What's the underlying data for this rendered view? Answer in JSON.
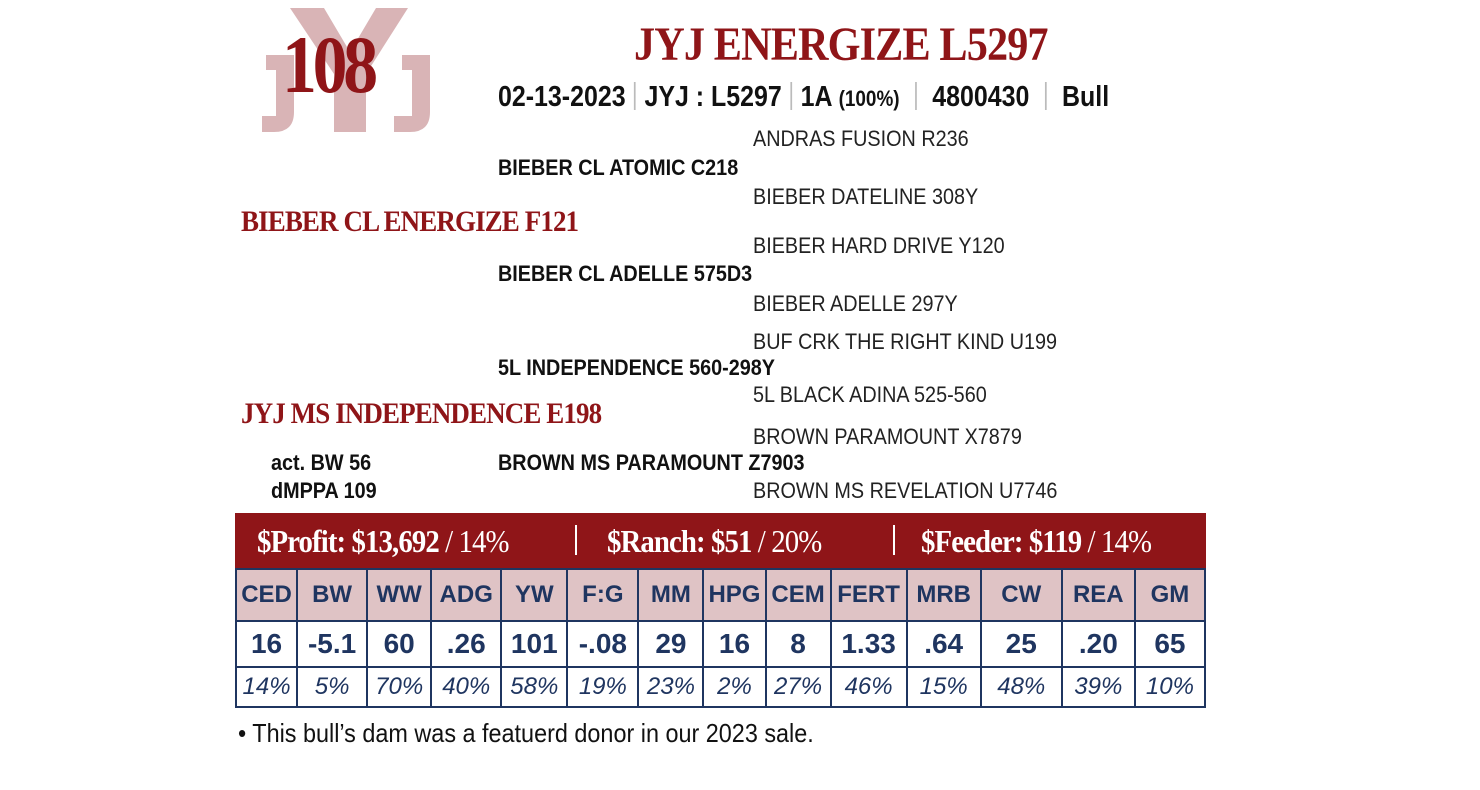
{
  "logo": {
    "letters": [
      "J",
      "Y",
      "J"
    ]
  },
  "lot_number": "108",
  "title": "JYJ ENERGIZE L5297",
  "info": {
    "birth_date": "02-13-2023",
    "tattoo": "JYJ : L5297",
    "code": "1A",
    "percent": "(100%)",
    "registration": "4800430",
    "sex": "Bull"
  },
  "pedigree": {
    "sire": "BIEBER CL ENERGIZE F121",
    "sire_sire": "BIEBER CL ATOMIC C218",
    "sire_sire_sire": "ANDRAS FUSION R236",
    "sire_sire_dam": "BIEBER DATELINE 308Y",
    "sire_dam": "BIEBER CL ADELLE 575D3",
    "sire_dam_sire": "BIEBER HARD DRIVE Y120",
    "sire_dam_dam": "BIEBER ADELLE 297Y",
    "dam": "JYJ MS INDEPENDENCE E198",
    "dam_sire": "5L INDEPENDENCE 560-298Y",
    "dam_sire_sire": "BUF CRK THE RIGHT KIND U199",
    "dam_sire_dam": "5L BLACK ADINA 525-560",
    "dam_dam": "BROWN MS PARAMOUNT Z7903",
    "dam_dam_sire": "BROWN PARAMOUNT X7879",
    "dam_dam_dam": "BROWN MS REVELATION U7746"
  },
  "measures": {
    "bw": "act. BW 56",
    "dmppa": "dMPPA 109"
  },
  "indexes": [
    {
      "label": "$Profit:",
      "value": "$13,692",
      "pct": "/ 14%"
    },
    {
      "label": "$Ranch:",
      "value": "$51",
      "pct": "/ 20%"
    },
    {
      "label": "$Feeder:",
      "value": "$119",
      "pct": "/ 14%"
    }
  ],
  "epds": {
    "headers": [
      "CED",
      "BW",
      "WW",
      "ADG",
      "YW",
      "F:G",
      "MM",
      "HPG",
      "CEM",
      "FERT",
      "MRB",
      "CW",
      "REA",
      "GM"
    ],
    "values": [
      "16",
      "-5.1",
      "60",
      ".26",
      "101",
      "-.08",
      "29",
      "16",
      "8",
      "1.33",
      ".64",
      "25",
      ".20",
      "65"
    ],
    "percentiles": [
      "14%",
      "5%",
      "70%",
      "40%",
      "58%",
      "19%",
      "23%",
      "2%",
      "27%",
      "46%",
      "15%",
      "48%",
      "39%",
      "10%"
    ]
  },
  "note": "• This bull’s dam was a featuerd donor in our 2023 sale.",
  "colors": {
    "brand_red": "#8f1518",
    "navy": "#1f3560",
    "header_pink": "#dfc3c5"
  }
}
